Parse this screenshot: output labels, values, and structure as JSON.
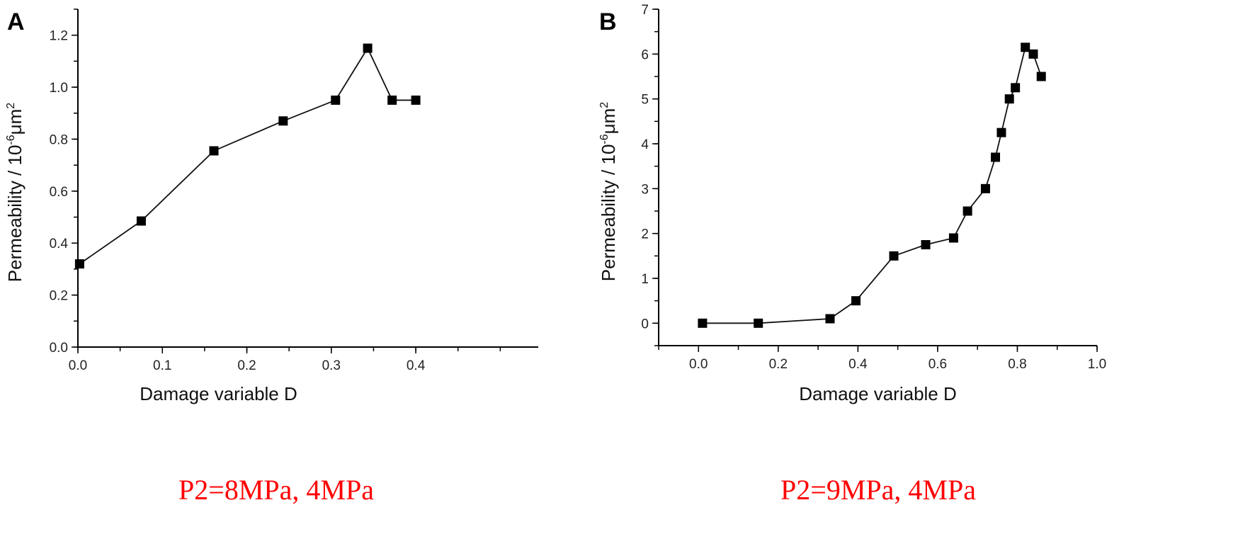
{
  "chart_data": [
    {
      "type": "line",
      "panel_label": "A",
      "title": "",
      "xlabel": "Damage variable D",
      "ylabel": "Permeability / 10",
      "ylabel_sup": "-6",
      "ylabel_unit": "μm",
      "ylabel_unit_sup": "2",
      "xlim": [
        0,
        0.545
      ],
      "ylim": [
        0,
        1.3
      ],
      "xticks": [
        "0.0",
        "0.1",
        "0.2",
        "0.3",
        "0.4"
      ],
      "xtick_values": [
        0,
        0.1,
        0.2,
        0.3,
        0.4
      ],
      "yticks": [
        "0.0",
        "0.2",
        "0.4",
        "0.6",
        "0.8",
        "1.0",
        "1.2"
      ],
      "ytick_values": [
        0,
        0.2,
        0.4,
        0.6,
        0.8,
        1.0,
        1.2
      ],
      "grid": false,
      "marker": "square",
      "x": [
        0.002,
        0.075,
        0.161,
        0.243,
        0.305,
        0.343,
        0.372,
        0.4
      ],
      "y": [
        0.32,
        0.485,
        0.755,
        0.87,
        0.95,
        1.15,
        0.95,
        0.95
      ],
      "caption": "P2=8MPa, 4MPa",
      "caption_color": "#ff0000"
    },
    {
      "type": "line",
      "panel_label": "B",
      "title": "",
      "xlabel": "Damage variable D",
      "ylabel": "Permeability / 10",
      "ylabel_sup": "-6",
      "ylabel_unit": "μm",
      "ylabel_unit_sup": "2",
      "xlim": [
        -0.1,
        1.0
      ],
      "ylim": [
        -0.5,
        7
      ],
      "xticks": [
        "0.0",
        "0.2",
        "0.4",
        "0.6",
        "0.8",
        "1.0"
      ],
      "xtick_values": [
        0,
        0.2,
        0.4,
        0.6,
        0.8,
        1.0
      ],
      "yticks": [
        "0",
        "1",
        "2",
        "3",
        "4",
        "5",
        "6",
        "7"
      ],
      "ytick_values": [
        0,
        1,
        2,
        3,
        4,
        5,
        6,
        7
      ],
      "grid": false,
      "marker": "square",
      "x": [
        0.01,
        0.15,
        0.33,
        0.395,
        0.49,
        0.57,
        0.64,
        0.675,
        0.72,
        0.745,
        0.76,
        0.78,
        0.795,
        0.82,
        0.84,
        0.86
      ],
      "y": [
        0,
        0,
        0.1,
        0.5,
        1.5,
        1.75,
        1.9,
        2.5,
        3.0,
        3.7,
        4.25,
        5.0,
        5.25,
        6.15,
        6.0,
        5.5
      ],
      "caption": "P2=9MPa, 4MPa",
      "caption_color": "#ff0000"
    }
  ]
}
